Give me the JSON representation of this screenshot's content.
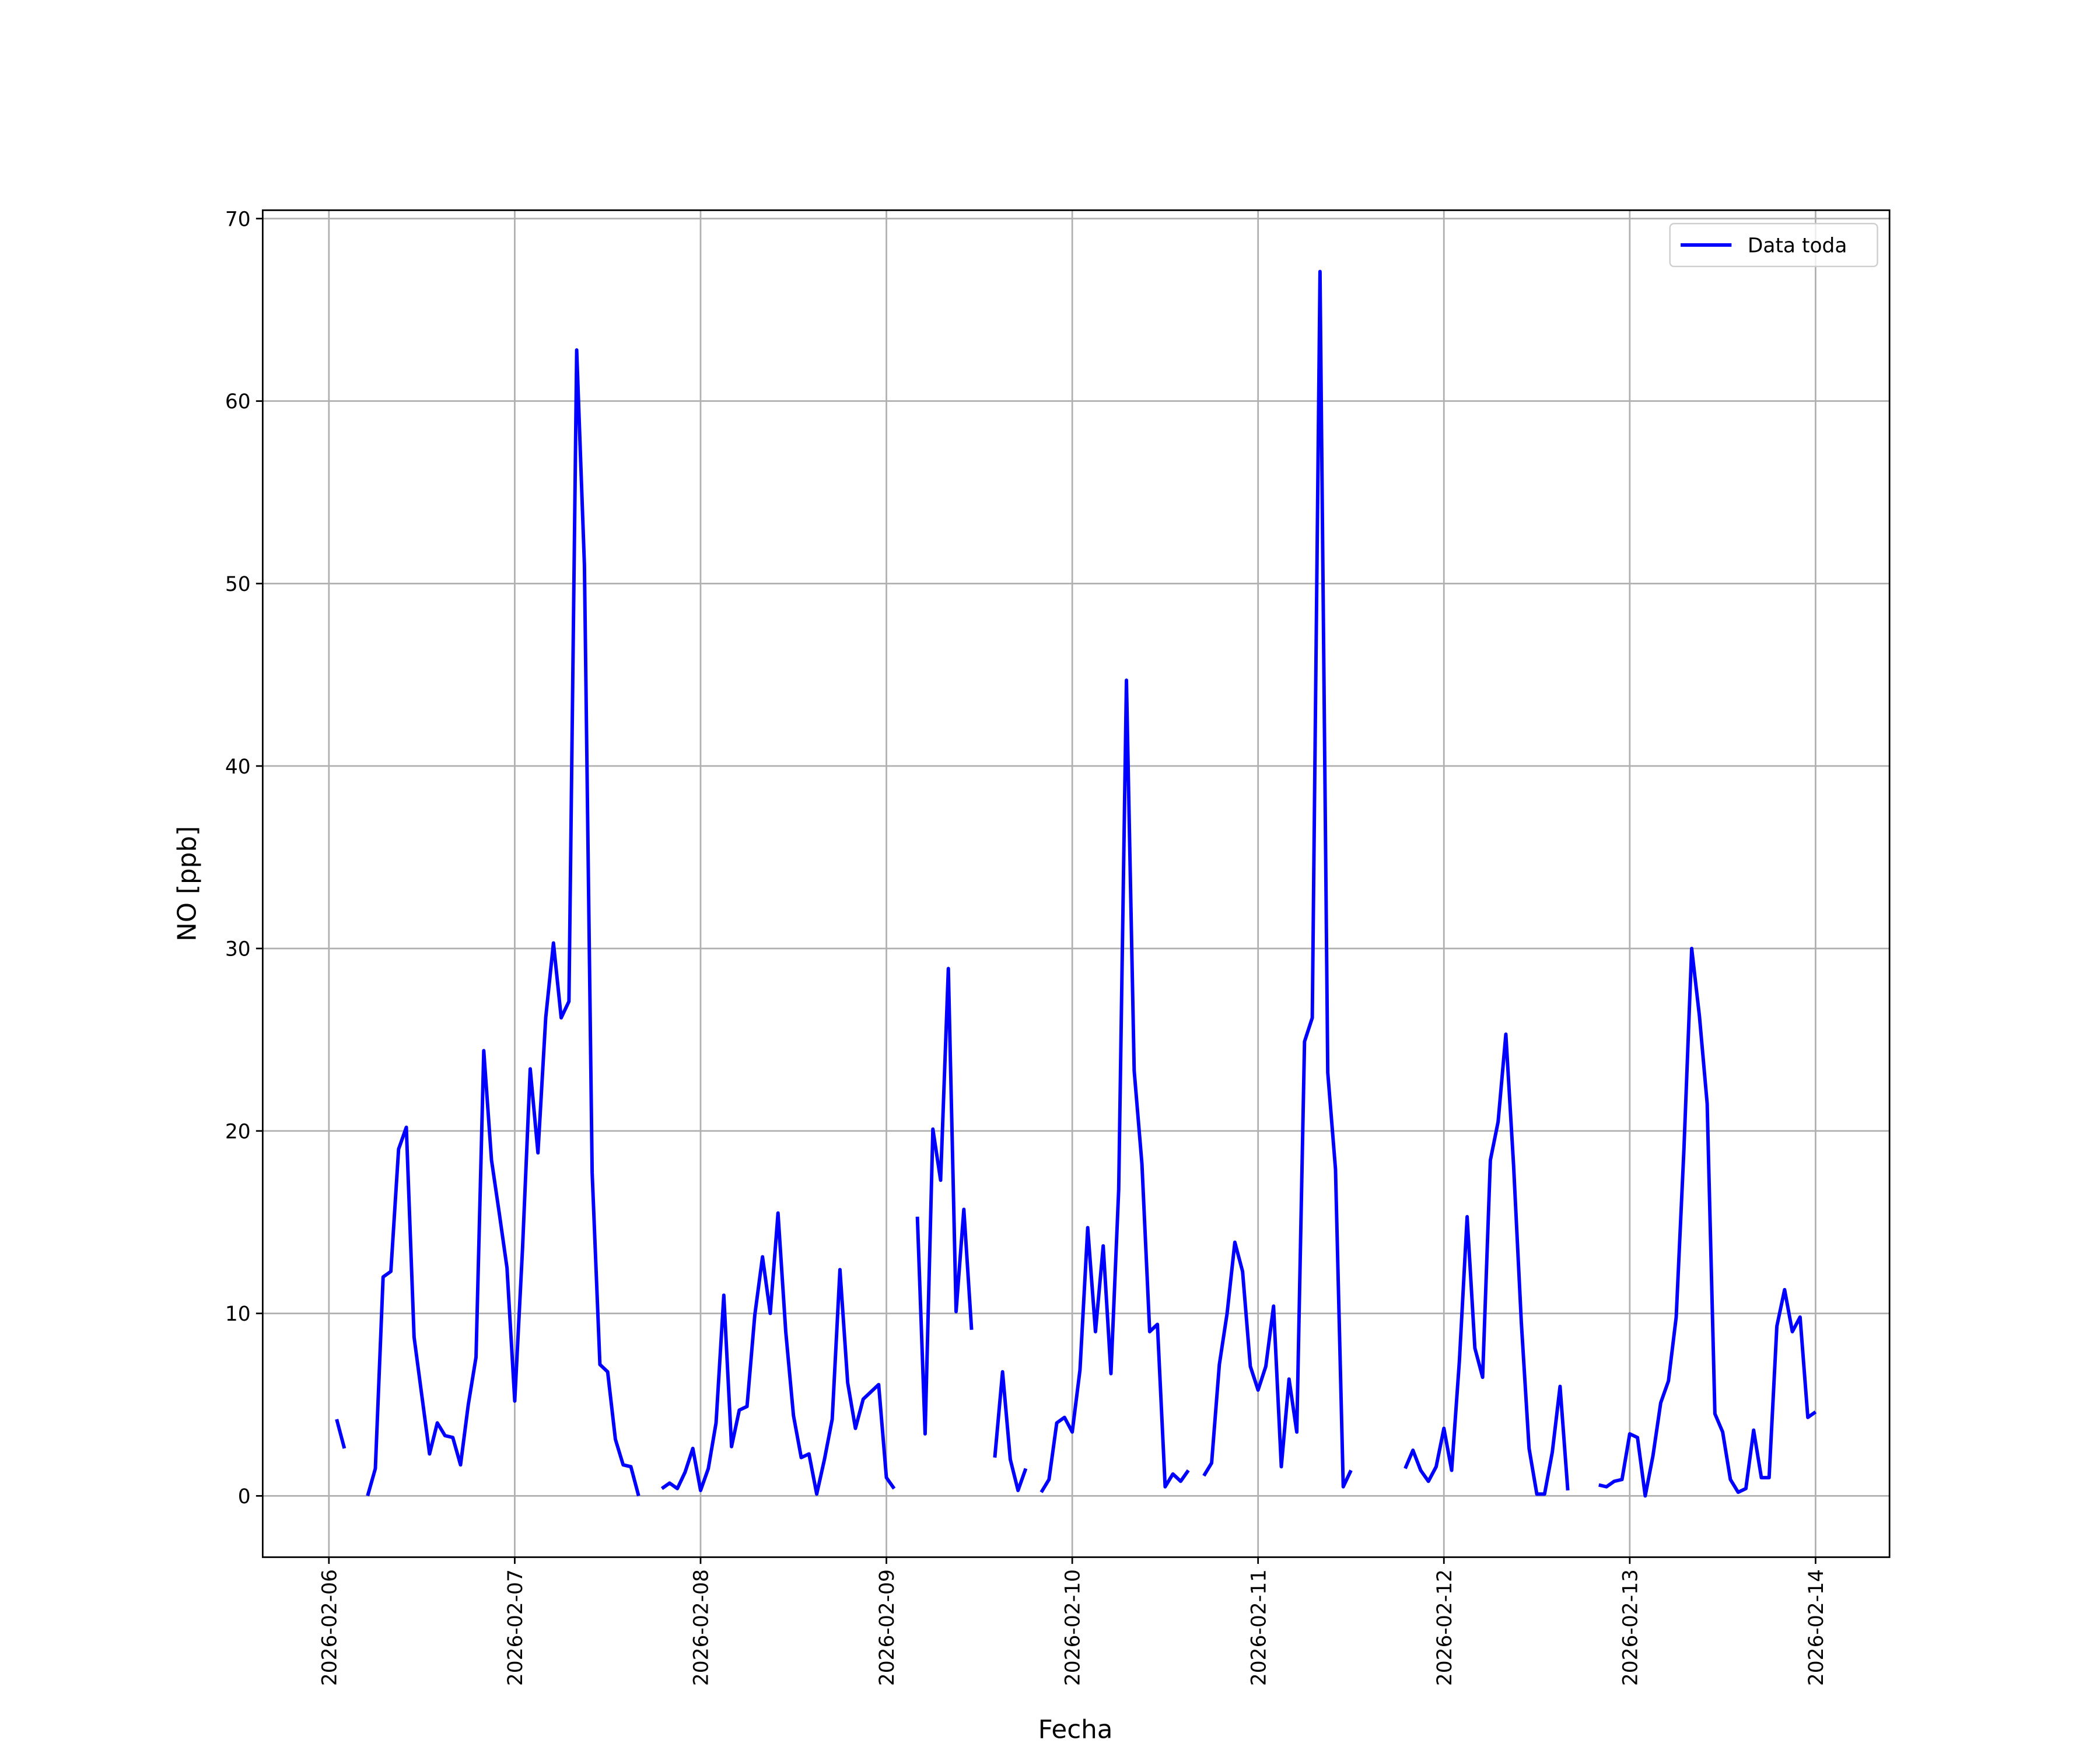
{
  "chart_data": {
    "type": "line",
    "xlabel": "Fecha",
    "ylabel": "NO [ppb]",
    "grid": true,
    "legend": "upper right",
    "xlim": [
      "2026-02-05T15:27",
      "2026-02-14T09:33"
    ],
    "xticks": [
      "2026-02-06",
      "2026-02-07",
      "2026-02-08",
      "2026-02-09",
      "2026-02-10",
      "2026-02-11",
      "2026-02-12",
      "2026-02-13",
      "2026-02-14"
    ],
    "ylim": [
      -3.36,
      70.46
    ],
    "yticks": [
      0,
      10,
      20,
      30,
      40,
      50,
      60,
      70
    ],
    "x": [
      "2026-02-06T01:00",
      "2026-02-06T02:00",
      "2026-02-06T03:00",
      "2026-02-06T04:00",
      "2026-02-06T05:00",
      "2026-02-06T06:00",
      "2026-02-06T07:00",
      "2026-02-06T08:00",
      "2026-02-06T09:00",
      "2026-02-06T10:00",
      "2026-02-06T11:00",
      "2026-02-06T12:00",
      "2026-02-06T13:00",
      "2026-02-06T14:00",
      "2026-02-06T15:00",
      "2026-02-06T16:00",
      "2026-02-06T17:00",
      "2026-02-06T18:00",
      "2026-02-06T19:00",
      "2026-02-06T20:00",
      "2026-02-06T21:00",
      "2026-02-06T22:00",
      "2026-02-06T23:00",
      "2026-02-07T00:00",
      "2026-02-07T01:00",
      "2026-02-07T02:00",
      "2026-02-07T03:00",
      "2026-02-07T04:00",
      "2026-02-07T05:00",
      "2026-02-07T06:00",
      "2026-02-07T07:00",
      "2026-02-07T08:00",
      "2026-02-07T09:00",
      "2026-02-07T10:00",
      "2026-02-07T11:00",
      "2026-02-07T12:00",
      "2026-02-07T13:00",
      "2026-02-07T14:00",
      "2026-02-07T15:00",
      "2026-02-07T16:00",
      "2026-02-07T17:00",
      "2026-02-07T18:00",
      "2026-02-07T19:00",
      "2026-02-07T20:00",
      "2026-02-07T21:00",
      "2026-02-07T22:00",
      "2026-02-07T23:00",
      "2026-02-08T00:00",
      "2026-02-08T01:00",
      "2026-02-08T02:00",
      "2026-02-08T03:00",
      "2026-02-08T04:00",
      "2026-02-08T05:00",
      "2026-02-08T06:00",
      "2026-02-08T07:00",
      "2026-02-08T08:00",
      "2026-02-08T09:00",
      "2026-02-08T10:00",
      "2026-02-08T11:00",
      "2026-02-08T12:00",
      "2026-02-08T13:00",
      "2026-02-08T14:00",
      "2026-02-08T15:00",
      "2026-02-08T16:00",
      "2026-02-08T17:00",
      "2026-02-08T18:00",
      "2026-02-08T19:00",
      "2026-02-08T20:00",
      "2026-02-08T21:00",
      "2026-02-08T22:00",
      "2026-02-08T23:00",
      "2026-02-09T00:00",
      "2026-02-09T01:00",
      "2026-02-09T02:00",
      "2026-02-09T03:00",
      "2026-02-09T04:00",
      "2026-02-09T05:00",
      "2026-02-09T06:00",
      "2026-02-09T07:00",
      "2026-02-09T08:00",
      "2026-02-09T09:00",
      "2026-02-09T10:00",
      "2026-02-09T11:00",
      "2026-02-09T12:00",
      "2026-02-09T13:00",
      "2026-02-09T14:00",
      "2026-02-09T15:00",
      "2026-02-09T16:00",
      "2026-02-09T17:00",
      "2026-02-09T18:00",
      "2026-02-09T19:00",
      "2026-02-09T20:00",
      "2026-02-09T21:00",
      "2026-02-09T22:00",
      "2026-02-09T23:00",
      "2026-02-10T00:00",
      "2026-02-10T01:00",
      "2026-02-10T02:00",
      "2026-02-10T03:00",
      "2026-02-10T04:00",
      "2026-02-10T05:00",
      "2026-02-10T06:00",
      "2026-02-10T07:00",
      "2026-02-10T08:00",
      "2026-02-10T09:00",
      "2026-02-10T10:00",
      "2026-02-10T11:00",
      "2026-02-10T12:00",
      "2026-02-10T13:00",
      "2026-02-10T14:00",
      "2026-02-10T15:00",
      "2026-02-10T16:00",
      "2026-02-10T17:00",
      "2026-02-10T18:00",
      "2026-02-10T19:00",
      "2026-02-10T20:00",
      "2026-02-10T21:00",
      "2026-02-10T22:00",
      "2026-02-10T23:00",
      "2026-02-11T00:00",
      "2026-02-11T01:00",
      "2026-02-11T02:00",
      "2026-02-11T03:00",
      "2026-02-11T04:00",
      "2026-02-11T05:00",
      "2026-02-11T06:00",
      "2026-02-11T07:00",
      "2026-02-11T08:00",
      "2026-02-11T09:00",
      "2026-02-11T10:00",
      "2026-02-11T11:00",
      "2026-02-11T12:00",
      "2026-02-11T13:00",
      "2026-02-11T14:00",
      "2026-02-11T15:00",
      "2026-02-11T16:00",
      "2026-02-11T17:00",
      "2026-02-11T18:00",
      "2026-02-11T19:00",
      "2026-02-11T20:00",
      "2026-02-11T21:00",
      "2026-02-11T22:00",
      "2026-02-11T23:00",
      "2026-02-12T00:00",
      "2026-02-12T01:00",
      "2026-02-12T02:00",
      "2026-02-12T03:00",
      "2026-02-12T04:00",
      "2026-02-12T05:00",
      "2026-02-12T06:00",
      "2026-02-12T07:00",
      "2026-02-12T08:00",
      "2026-02-12T09:00",
      "2026-02-12T10:00",
      "2026-02-12T11:00",
      "2026-02-12T12:00",
      "2026-02-12T13:00",
      "2026-02-12T14:00",
      "2026-02-12T15:00",
      "2026-02-12T16:00",
      "2026-02-12T17:00",
      "2026-02-12T18:00",
      "2026-02-12T19:00",
      "2026-02-12T20:00",
      "2026-02-12T21:00",
      "2026-02-12T22:00",
      "2026-02-12T23:00",
      "2026-02-13T00:00",
      "2026-02-13T01:00",
      "2026-02-13T02:00",
      "2026-02-13T03:00",
      "2026-02-13T04:00",
      "2026-02-13T05:00",
      "2026-02-13T06:00",
      "2026-02-13T07:00",
      "2026-02-13T08:00",
      "2026-02-13T09:00",
      "2026-02-13T10:00",
      "2026-02-13T11:00",
      "2026-02-13T12:00",
      "2026-02-13T13:00",
      "2026-02-13T14:00",
      "2026-02-13T15:00",
      "2026-02-13T16:00",
      "2026-02-13T17:00",
      "2026-02-13T18:00",
      "2026-02-13T19:00",
      "2026-02-13T20:00",
      "2026-02-13T21:00",
      "2026-02-13T22:00",
      "2026-02-13T23:00",
      "2026-02-14T00:00"
    ],
    "series": [
      {
        "name": "Data toda",
        "color": "#0000ff",
        "values": [
          4.2,
          2.6,
          null,
          null,
          0,
          1.5,
          12,
          12.3,
          19,
          20.2,
          8.7,
          5.5,
          2.3,
          4,
          3.3,
          3.2,
          1.7,
          5,
          7.6,
          24.4,
          18.4,
          15.5,
          12.5,
          5.2,
          13.5,
          23.4,
          18.8,
          26.2,
          30.3,
          26.2,
          27.1,
          62.8,
          51,
          17.7,
          7.2,
          6.8,
          3.1,
          1.7,
          1.6,
          0,
          null,
          null,
          0.4,
          0.7,
          0.4,
          1.3,
          2.6,
          0.3,
          1.5,
          4,
          11,
          2.7,
          4.7,
          4.9,
          9.9,
          13.1,
          10,
          15.5,
          9,
          4.4,
          2.1,
          2.3,
          0.1,
          2,
          4.2,
          12.4,
          6.2,
          3.7,
          5.3,
          5.7,
          6.1,
          1,
          0.4,
          null,
          null,
          15.3,
          3.4,
          20.1,
          17.3,
          28.9,
          10.1,
          15.7,
          9.1,
          null,
          null,
          2.1,
          6.8,
          2,
          0.3,
          1.5,
          null,
          0.2,
          0.9,
          4,
          4.3,
          3.5,
          6.9,
          14.7,
          9,
          13.7,
          6.7,
          16.8,
          44.7,
          23.3,
          18.2,
          9,
          9.4,
          0.5,
          1.2,
          0.8,
          1.4,
          null,
          1.1,
          1.8,
          7.2,
          10,
          13.9,
          12.3,
          7.1,
          5.8,
          7.1,
          10.4,
          1.6,
          6.4,
          3.5,
          24.9,
          26.2,
          67.1,
          23.2,
          17.9,
          0.5,
          1.4,
          null,
          null,
          null,
          null,
          null,
          null,
          1.5,
          2.5,
          1.4,
          0.8,
          1.6,
          3.7,
          1.4,
          7.4,
          15.3,
          8.1,
          6.5,
          18.4,
          20.5,
          25.3,
          18.1,
          9.5,
          2.6,
          0.1,
          0.1,
          2.4,
          6,
          0.3,
          null,
          null,
          null,
          0.6,
          0.5,
          0.8,
          0.9,
          3.4,
          3.2,
          0,
          2.2,
          5.1,
          6.3,
          9.8,
          19,
          30,
          26.3,
          21.5,
          4.5,
          3.5,
          0.9,
          0.2,
          0.4,
          3.6,
          1,
          1,
          9.3,
          11.3,
          9,
          9.8,
          4.3,
          4.6
        ]
      }
    ]
  }
}
